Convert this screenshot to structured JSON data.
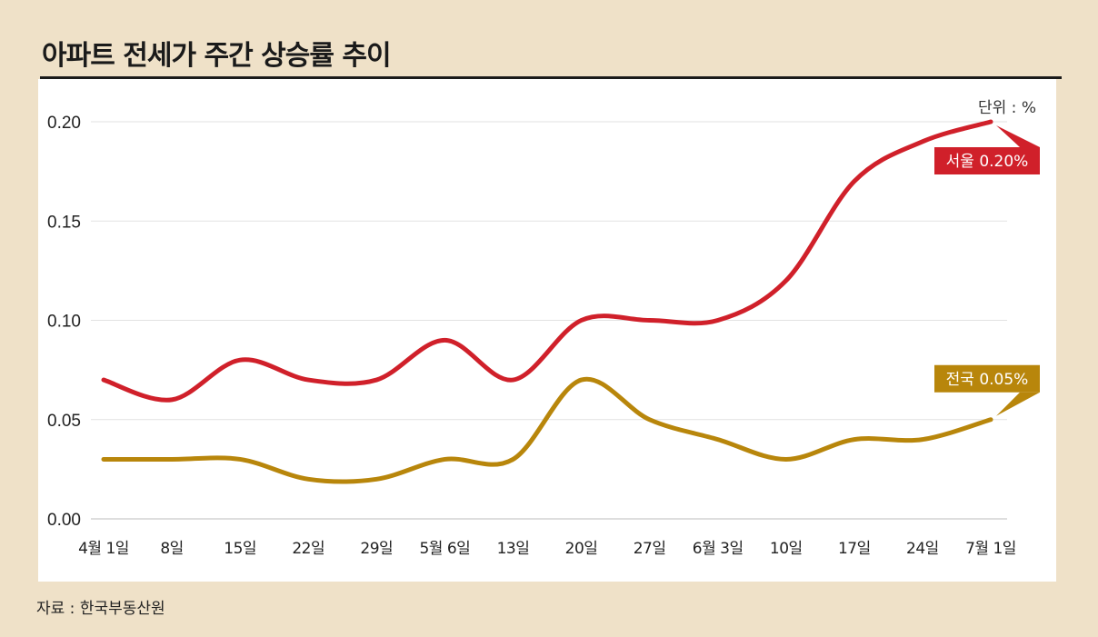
{
  "chart_data": {
    "type": "line",
    "title": "아파트 전세가 주간 상승률 추이",
    "unit_label": "단위 : %",
    "source": "자료 : 한국부동산원",
    "categories": [
      "4월 1일",
      "8일",
      "15일",
      "22일",
      "29일",
      "5월 6일",
      "13일",
      "20일",
      "27일",
      "6월 3일",
      "10일",
      "17일",
      "24일",
      "7월 1일"
    ],
    "y_ticks": [
      "0.20",
      "0.15",
      "0.10",
      "0.05",
      "0.00"
    ],
    "ylim": [
      0,
      0.2
    ],
    "grid": true,
    "series": [
      {
        "name": "서울",
        "label": "서울 0.20%",
        "color": "#d0202a",
        "values": [
          0.07,
          0.06,
          0.08,
          0.07,
          0.07,
          0.09,
          0.07,
          0.1,
          0.1,
          0.1,
          0.12,
          0.17,
          0.19,
          0.2
        ]
      },
      {
        "name": "전국",
        "label": "전국 0.05%",
        "color": "#b8860b",
        "values": [
          0.03,
          0.03,
          0.03,
          0.02,
          0.02,
          0.03,
          0.03,
          0.07,
          0.05,
          0.04,
          0.03,
          0.04,
          0.04,
          0.05
        ]
      }
    ]
  }
}
